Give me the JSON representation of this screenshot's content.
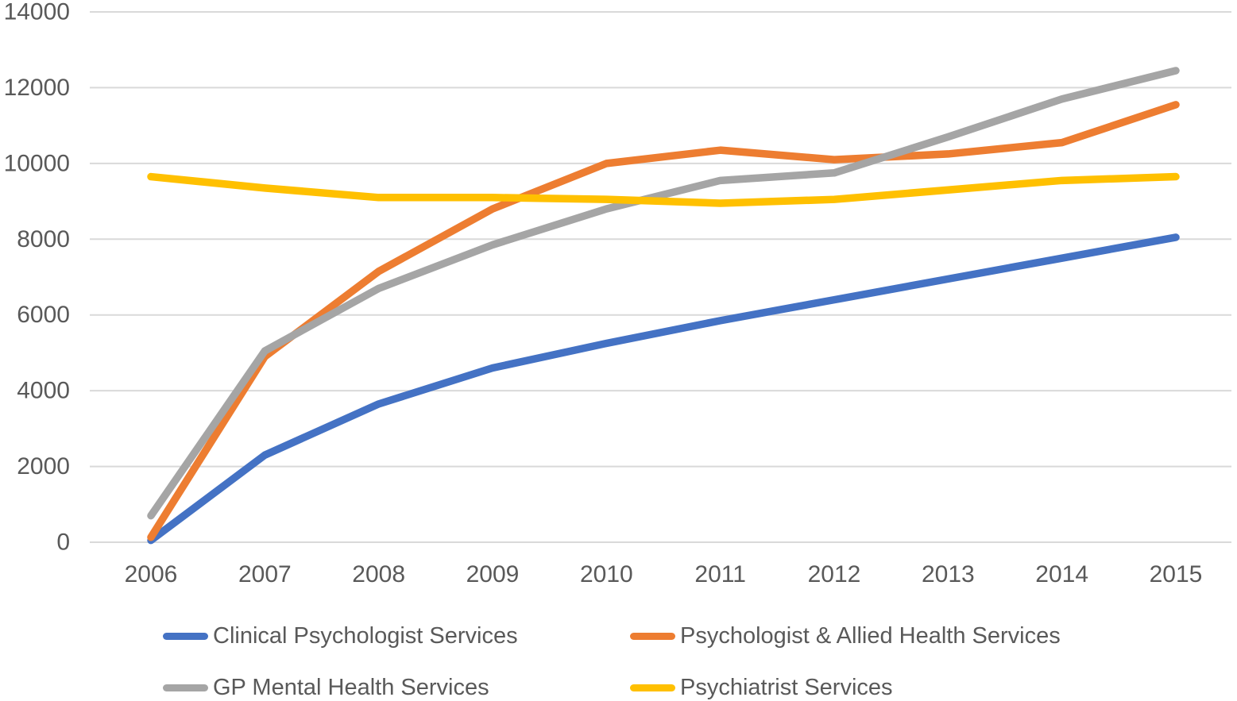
{
  "chart_data": {
    "type": "line",
    "x": [
      2006,
      2007,
      2008,
      2009,
      2010,
      2011,
      2012,
      2013,
      2014,
      2015
    ],
    "y_ticks": [
      0,
      2000,
      4000,
      6000,
      8000,
      10000,
      12000,
      14000
    ],
    "ylim": [
      0,
      14000
    ],
    "grid": true,
    "legend_position": "bottom",
    "series": [
      {
        "name": "Clinical Psychologist Services",
        "color": "#4472C4",
        "values": [
          50,
          2300,
          3650,
          4600,
          5250,
          5850,
          6400,
          6950,
          7500,
          8050
        ]
      },
      {
        "name": "Psychologist & Allied Health Services",
        "color": "#ED7D31",
        "values": [
          130,
          4900,
          7150,
          8800,
          10000,
          10350,
          10100,
          10250,
          10550,
          11550
        ]
      },
      {
        "name": "GP Mental Health Services",
        "color": "#A5A5A5",
        "values": [
          700,
          5050,
          6700,
          7850,
          8800,
          9550,
          9750,
          10700,
          11700,
          12450
        ]
      },
      {
        "name": "Psychiatrist Services",
        "color": "#FFC000",
        "values": [
          9650,
          9350,
          9100,
          9100,
          9050,
          8950,
          9050,
          9300,
          9550,
          9650
        ]
      }
    ],
    "colors": {
      "gridline": "#D9D9D9",
      "axis_text": "#595959"
    }
  }
}
